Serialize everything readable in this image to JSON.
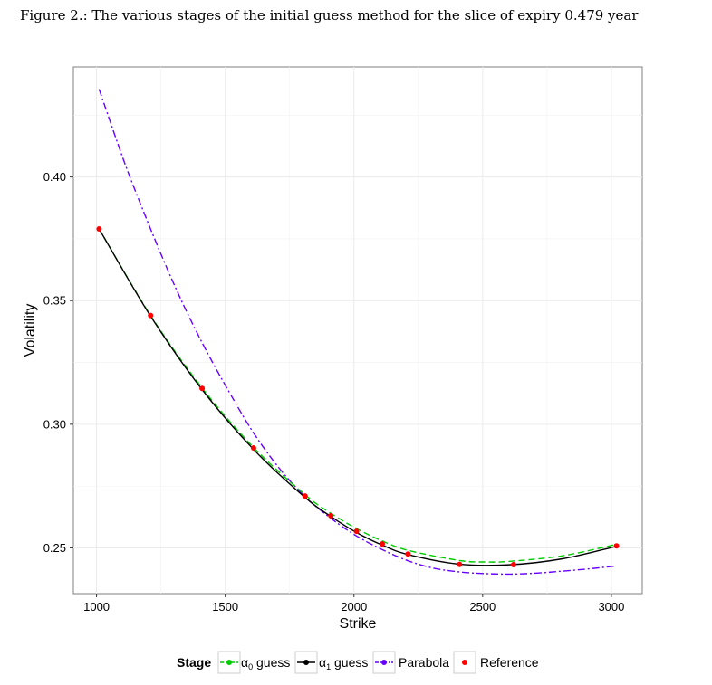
{
  "caption": "Figure 2.: The various stages of the initial guess method for the slice of expiry 0.479 year",
  "chart_data": {
    "type": "line",
    "title": "",
    "xlabel": "Strike",
    "ylabel": "Volatility",
    "xlim": [
      910,
      3120
    ],
    "ylim": [
      0.2315,
      0.4445
    ],
    "x_ticks": [
      1000,
      1500,
      2000,
      2500,
      3000
    ],
    "x_tick_labels": [
      "1000",
      "1500",
      "2000",
      "2500",
      "3000"
    ],
    "y_ticks": [
      0.25,
      0.3,
      0.35,
      0.4
    ],
    "y_tick_labels": [
      "0.25",
      "0.30",
      "0.35",
      "0.40"
    ],
    "grid": true,
    "legend_position": "bottom",
    "legend": {
      "title": "Stage",
      "entries": [
        {
          "label": "α₀ guess",
          "sym": "α",
          "sub": "0",
          "rest": " guess",
          "color": "#00cc00",
          "dash": "7,4"
        },
        {
          "label": "α₁ guess",
          "sym": "α",
          "sub": "1",
          "rest": " guess",
          "color": "#000000",
          "dash": ""
        },
        {
          "label": "Parabola",
          "color": "#6600ff",
          "dash": "8,3,2,3"
        },
        {
          "label": "Reference",
          "color": "#ff0000",
          "dash": "none"
        }
      ]
    },
    "series": [
      {
        "name": "α₀ guess",
        "kind": "line",
        "color": "#00cc00",
        "dash": "7,4",
        "x": [
          1010,
          1210,
          1410,
          1610,
          1810,
          1910,
          2010,
          2110,
          2210,
          2410,
          2510,
          2610,
          2810,
          3010
        ],
        "y": [
          0.379,
          0.344,
          0.3147,
          0.2906,
          0.2715,
          0.264,
          0.2578,
          0.2528,
          0.249,
          0.2449,
          0.2443,
          0.2446,
          0.2468,
          0.2512
        ]
      },
      {
        "name": "α₁ guess",
        "kind": "line",
        "color": "#000000",
        "dash": "",
        "x": [
          1010,
          1210,
          1410,
          1610,
          1810,
          1910,
          2010,
          2110,
          2210,
          2410,
          2610,
          2810,
          3010
        ],
        "y": [
          0.379,
          0.3437,
          0.314,
          0.2898,
          0.2704,
          0.2627,
          0.2562,
          0.2511,
          0.2473,
          0.2434,
          0.2432,
          0.2456,
          0.2504
        ]
      },
      {
        "name": "Parabola",
        "kind": "line",
        "color": "#6600ff",
        "dash": "8,3,2,3",
        "x": [
          1010,
          1110,
          1210,
          1310,
          1410,
          1510,
          1610,
          1710,
          1810,
          1910,
          2010,
          2110,
          2210,
          2310,
          2410,
          2510,
          2610,
          2710,
          2810,
          2910,
          3020
        ],
        "y": [
          0.4355,
          0.4055,
          0.379,
          0.3545,
          0.333,
          0.314,
          0.2965,
          0.2822,
          0.2707,
          0.262,
          0.2548,
          0.2493,
          0.2448,
          0.2418,
          0.2403,
          0.2396,
          0.2394,
          0.2398,
          0.2406,
          0.2415,
          0.2427
        ]
      },
      {
        "name": "Reference",
        "kind": "points",
        "color": "#ff0000",
        "x": [
          1010,
          1210,
          1410,
          1610,
          1810,
          1910,
          2010,
          2110,
          2210,
          2410,
          2620,
          3020
        ],
        "y": [
          0.379,
          0.344,
          0.3145,
          0.2904,
          0.271,
          0.263,
          0.2567,
          0.2516,
          0.2475,
          0.2433,
          0.2432,
          0.2508
        ]
      }
    ]
  }
}
